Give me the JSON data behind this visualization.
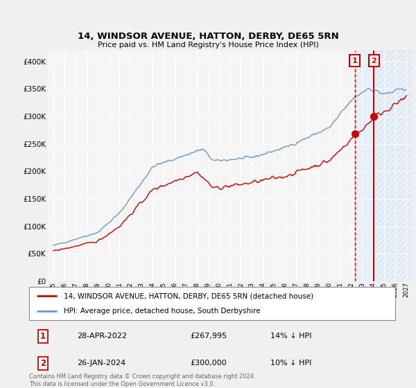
{
  "title": "14, WINDSOR AVENUE, HATTON, DERBY, DE65 5RN",
  "subtitle": "Price paid vs. HM Land Registry's House Price Index (HPI)",
  "legend_line1": "14, WINDSOR AVENUE, HATTON, DERBY, DE65 5RN (detached house)",
  "legend_line2": "HPI: Average price, detached house, South Derbyshire",
  "annotation1_date": "28-APR-2022",
  "annotation1_price": "£267,995",
  "annotation1_hpi": "14% ↓ HPI",
  "annotation2_date": "26-JAN-2024",
  "annotation2_price": "£300,000",
  "annotation2_hpi": "10% ↓ HPI",
  "footer": "Contains HM Land Registry data © Crown copyright and database right 2024.\nThis data is licensed under the Open Government Licence v3.0.",
  "red_color": "#cc0000",
  "blue_color": "#6699cc",
  "shade_color": "#ddeeff",
  "ylim": [
    0,
    420000
  ],
  "yticks": [
    0,
    50000,
    100000,
    150000,
    200000,
    250000,
    300000,
    350000,
    400000
  ],
  "background_color": "#f0f0f0",
  "plot_bg_color": "#f5f5f5",
  "grid_color": "#ffffff",
  "vline_x1": 2022.32,
  "vline_x2": 2024.07,
  "marker1_price": 267995,
  "marker1_year": 2022.32,
  "marker2_price": 300000,
  "marker2_year": 2024.07,
  "xmin": 1994.5,
  "xmax": 2027.5
}
